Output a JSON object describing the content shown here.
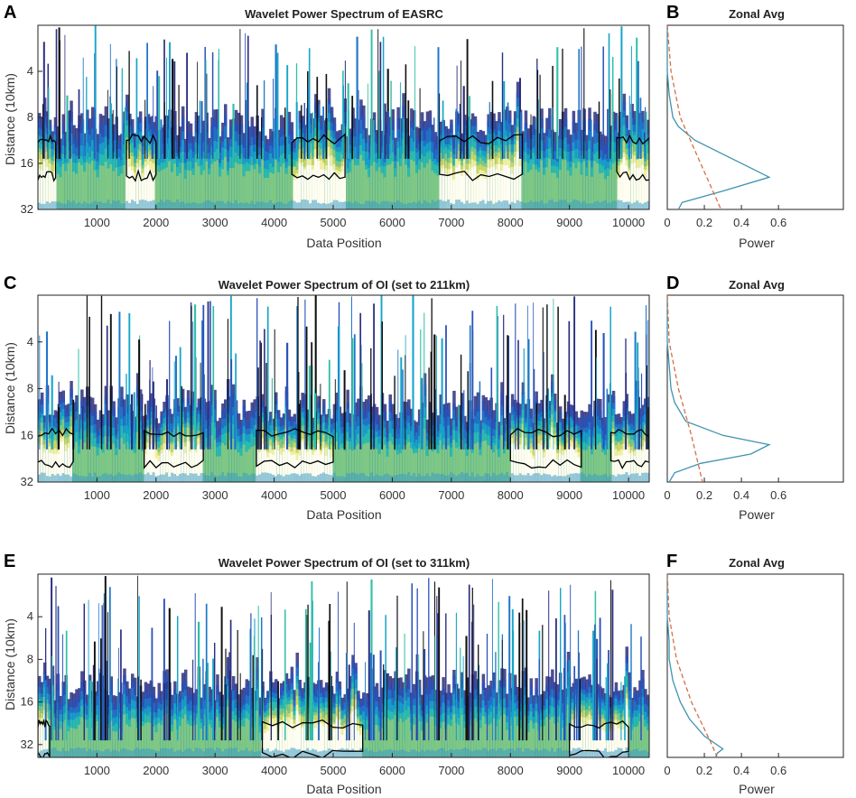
{
  "colors": {
    "contours": [
      "#2b2f7f",
      "#2a52b8",
      "#1f78c8",
      "#16a4c9",
      "#2fbfa8",
      "#8dc97e",
      "#d8d860",
      "#f7f3b0",
      "#ffffff"
    ],
    "significance": "#000000",
    "avg_line": "#3f93b0",
    "signif_line": "#d46f45"
  },
  "chart_data": [
    {
      "panel_label": "A",
      "type": "heatmap",
      "title": "Wavelet Power Spectrum of EASRC",
      "xlabel": "Data Position",
      "ylabel": "Distance (10km)",
      "xticks": [
        1000,
        2000,
        3000,
        4000,
        5000,
        6000,
        7000,
        8000,
        9000,
        10000
      ],
      "yticks": [
        "4",
        "8",
        "16",
        "32"
      ],
      "xlim": [
        1,
        10350
      ],
      "ylim_log2": [
        1.0,
        5.0
      ],
      "band_center_log2": 3.9,
      "band_top_log2": 3.1,
      "hot_regions": [
        [
          0,
          300
        ],
        [
          1500,
          2000
        ],
        [
          4300,
          5200
        ],
        [
          6800,
          8200
        ],
        [
          9800,
          10350
        ]
      ],
      "spike_seed": 11
    },
    {
      "panel_label": "B",
      "type": "line",
      "title": "Zonal Avg",
      "xlabel": "Power",
      "xticks": [
        0,
        0.2,
        0.4,
        0.6
      ],
      "xlim": [
        0,
        0.95
      ],
      "series": [
        {
          "name": "Zonal average power",
          "y_log2": [
            1.0,
            2.0,
            2.5,
            3.0,
            3.2,
            3.5,
            3.8,
            4.1,
            4.3,
            4.6,
            4.85,
            5.0
          ],
          "values": [
            0.0,
            0.0,
            0.01,
            0.03,
            0.06,
            0.15,
            0.3,
            0.45,
            0.55,
            0.3,
            0.08,
            0.06
          ]
        },
        {
          "name": "Significance",
          "y_log2": [
            1.0,
            2.0,
            3.0,
            4.0,
            5.0
          ],
          "values": [
            0.0,
            0.02,
            0.07,
            0.18,
            0.29
          ]
        }
      ]
    },
    {
      "panel_label": "C",
      "type": "heatmap",
      "title": "Wavelet Power Spectrum of OI (set to 211km)",
      "xlabel": "Data Position",
      "ylabel": "Distance (10km)",
      "xticks": [
        1000,
        2000,
        3000,
        4000,
        5000,
        6000,
        7000,
        8000,
        9000,
        10000
      ],
      "yticks": [
        "4",
        "8",
        "16",
        "32"
      ],
      "xlim": [
        1,
        10350
      ],
      "ylim_log2": [
        1.0,
        5.0
      ],
      "band_center_log2": 4.3,
      "band_top_log2": 3.4,
      "hot_regions": [
        [
          0,
          600
        ],
        [
          1800,
          2800
        ],
        [
          3700,
          5000
        ],
        [
          8000,
          9200
        ],
        [
          9700,
          10350
        ]
      ],
      "spike_seed": 23
    },
    {
      "panel_label": "D",
      "type": "line",
      "title": "Zonal Avg",
      "xlabel": "Power",
      "xticks": [
        0,
        0.2,
        0.4,
        0.6
      ],
      "xlim": [
        0,
        0.95
      ],
      "series": [
        {
          "name": "Zonal average power",
          "y_log2": [
            1.0,
            2.0,
            2.5,
            3.0,
            3.3,
            3.7,
            4.0,
            4.2,
            4.4,
            4.6,
            4.8,
            5.0
          ],
          "values": [
            0.0,
            0.0,
            0.01,
            0.02,
            0.04,
            0.1,
            0.3,
            0.55,
            0.45,
            0.18,
            0.04,
            0.01
          ]
        },
        {
          "name": "Significance",
          "y_log2": [
            1.0,
            2.0,
            3.0,
            4.0,
            5.0
          ],
          "values": [
            0.0,
            0.01,
            0.06,
            0.13,
            0.19
          ]
        }
      ]
    },
    {
      "panel_label": "E",
      "type": "heatmap",
      "title": "Wavelet Power Spectrum of OI (set to 311km)",
      "xlabel": "Data Position",
      "ylabel": "Distance (10km)",
      "xticks": [
        1000,
        2000,
        3000,
        4000,
        5000,
        6000,
        7000,
        8000,
        9000,
        10000
      ],
      "yticks": [
        "4",
        "8",
        "16",
        "32"
      ],
      "xlim": [
        1,
        10350
      ],
      "ylim_log2": [
        1.0,
        5.3
      ],
      "band_center_log2": 4.9,
      "band_top_log2": 3.6,
      "hot_regions": [
        [
          0,
          200
        ],
        [
          3800,
          5500
        ],
        [
          9000,
          10000
        ]
      ],
      "spike_seed": 37
    },
    {
      "panel_label": "F",
      "type": "line",
      "title": "Zonal Avg",
      "xlabel": "Power",
      "xticks": [
        0,
        0.2,
        0.4,
        0.6
      ],
      "xlim": [
        0,
        0.95
      ],
      "series": [
        {
          "name": "Zonal average power",
          "y_log2": [
            1.0,
            2.0,
            2.6,
            3.0,
            3.5,
            4.0,
            4.4,
            4.8,
            5.1,
            5.2,
            5.3
          ],
          "values": [
            0.0,
            0.0,
            0.01,
            0.01,
            0.03,
            0.07,
            0.12,
            0.2,
            0.3,
            0.27,
            0.26
          ]
        },
        {
          "name": "Significance",
          "y_log2": [
            1.0,
            2.0,
            3.0,
            4.0,
            5.0,
            5.3
          ],
          "values": [
            0.0,
            0.01,
            0.05,
            0.13,
            0.24,
            0.27
          ]
        }
      ]
    }
  ]
}
